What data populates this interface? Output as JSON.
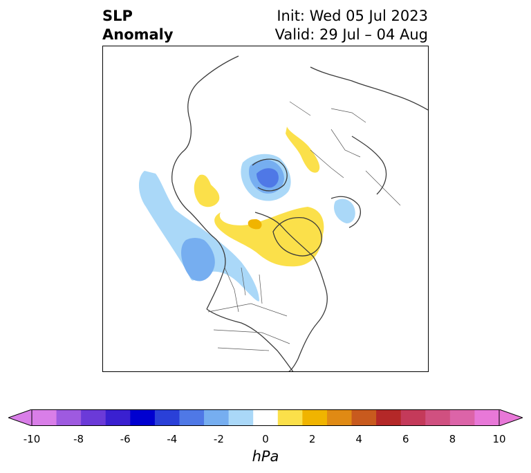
{
  "title": {
    "left_line1": "SLP",
    "left_line2": "Anomaly",
    "init": "Init: Wed 05 Jul 2023",
    "valid": "Valid: 29 Jul – 04 Aug"
  },
  "colorbar": {
    "units": "hPa",
    "tick_labels": [
      "-10",
      "-8",
      "-6",
      "-4",
      "-2",
      "0",
      "2",
      "4",
      "6",
      "8",
      "10"
    ],
    "colors": [
      "#d97ee8",
      "#9e5ae0",
      "#6b3ad8",
      "#3a20d0",
      "#0000d0",
      "#2a40d8",
      "#4f78e6",
      "#76aef0",
      "#aad8f8",
      "#ffffff",
      "#fbe04a",
      "#f0b400",
      "#e08a14",
      "#c85a1e",
      "#b42828",
      "#c43a5a",
      "#d05080",
      "#dc64a8",
      "#e878d8"
    ],
    "extend_min_color": "#d97ee8",
    "extend_max_color": "#e878d8"
  }
}
